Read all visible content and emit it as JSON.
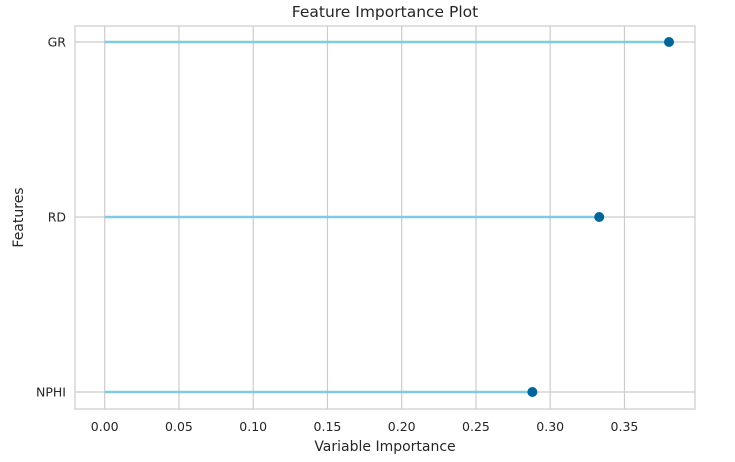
{
  "chart_data": {
    "type": "lollipop",
    "title": "Feature Importance Plot",
    "xlabel": "Variable Importance",
    "ylabel": "Features",
    "xlim": [
      -0.02,
      0.3975
    ],
    "x_ticks": [
      "0.00",
      "0.05",
      "0.10",
      "0.15",
      "0.20",
      "0.25",
      "0.30",
      "0.35"
    ],
    "categories": [
      "GR",
      "RD",
      "NPHI"
    ],
    "values": [
      0.38,
      0.333,
      0.288
    ],
    "grid": true,
    "colors": {
      "stem": "#7fcbe6",
      "point": "#006699",
      "grid": "#cccccc",
      "frame": "#cccccc",
      "text": "#262626"
    }
  }
}
